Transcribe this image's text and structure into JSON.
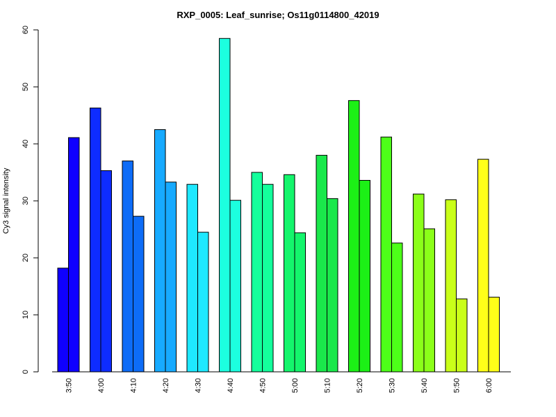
{
  "chart_data": {
    "type": "bar",
    "title": "RXP_0005: Leaf_sunrise; Os11g0114800_42019",
    "xlabel": "",
    "ylabel": "Cy3 signal intensity",
    "ylim": [
      0,
      60
    ],
    "yticks": [
      0,
      10,
      20,
      30,
      40,
      50,
      60
    ],
    "grid": false,
    "categories": [
      "3:50",
      "4:00",
      "4:10",
      "4:20",
      "4:30",
      "4:40",
      "4:50",
      "5:00",
      "5:10",
      "5:20",
      "5:30",
      "5:40",
      "5:50",
      "6:00"
    ],
    "colors": [
      "#0f00ff",
      "#0e2cff",
      "#0d6cf7",
      "#17aaff",
      "#1ee8ff",
      "#1cffdf",
      "#14ff9c",
      "#14f56c",
      "#1ae84b",
      "#1cf016",
      "#4dff19",
      "#8bff19",
      "#c9ff19",
      "#ffff19"
    ],
    "series": [
      {
        "values": [
          18.2,
          46.3,
          37.0,
          42.5,
          32.9,
          58.5,
          35.0,
          34.6,
          38.0,
          47.6,
          41.2,
          31.2,
          30.2,
          37.3
        ]
      },
      {
        "values": [
          41.1,
          35.3,
          27.3,
          33.3,
          24.5,
          30.1,
          32.9,
          24.4,
          30.4,
          33.6,
          22.6,
          25.1,
          12.8,
          13.1
        ]
      }
    ]
  }
}
